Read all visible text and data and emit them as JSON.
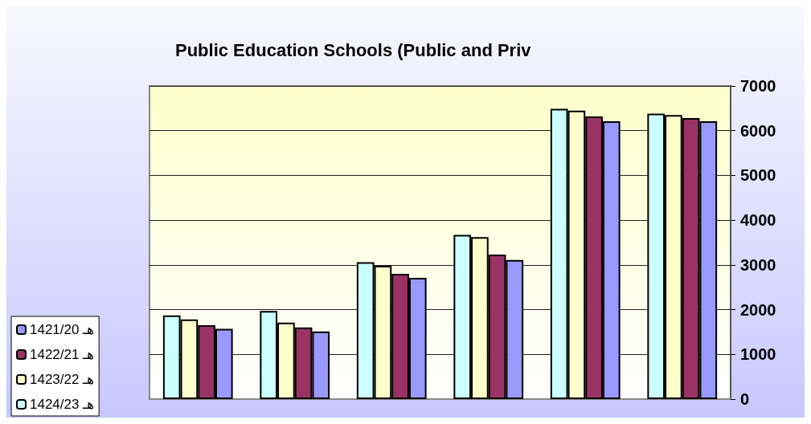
{
  "chart_data": {
    "type": "bar",
    "title": "Public Education Schools (Public and Priv",
    "categories": [
      null,
      null,
      null,
      null,
      null,
      null
    ],
    "series": [
      {
        "name": "هـ 1424/23",
        "color": "#ccffff",
        "values": [
          1870,
          1970,
          3060,
          3670,
          6490,
          6380
        ]
      },
      {
        "name": "هـ 1423/22",
        "color": "#ffffcc",
        "values": [
          1780,
          1710,
          2980,
          3620,
          6450,
          6350
        ]
      },
      {
        "name": "هـ 1422/21",
        "color": "#993366",
        "values": [
          1650,
          1600,
          2800,
          3230,
          6320,
          6280
        ]
      },
      {
        "name": "هـ 1421/20",
        "color": "#9999ff",
        "values": [
          1570,
          1510,
          2710,
          3110,
          6210,
          6210
        ]
      }
    ],
    "ylim": [
      0,
      7000
    ],
    "yticks": [
      0,
      1000,
      2000,
      3000,
      4000,
      5000,
      6000,
      7000
    ],
    "grid": "y",
    "legend": "bottom left"
  }
}
